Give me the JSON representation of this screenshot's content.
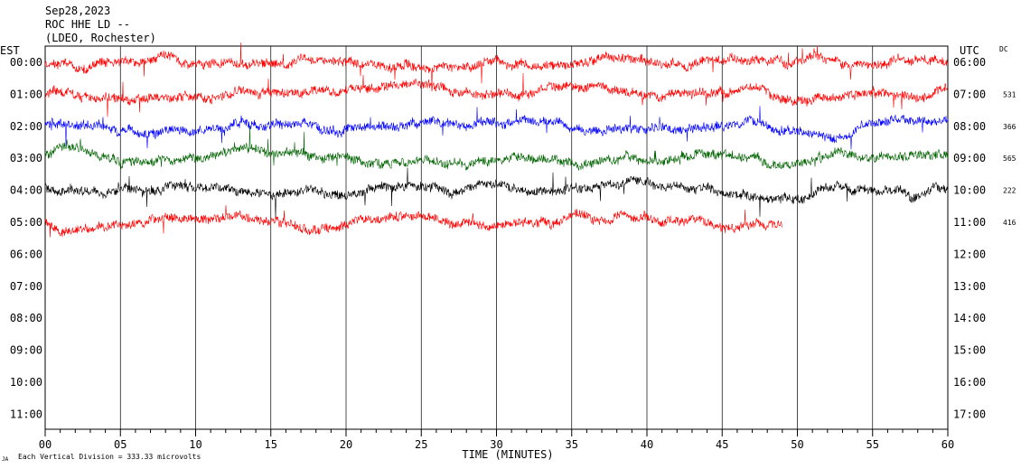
{
  "header": {
    "date": "Sep28,2023",
    "station": "ROC HHE LD --",
    "network": "(LDEO, Rochester)"
  },
  "labels": {
    "left_tz": "EST",
    "right_tz": "UTC",
    "dc": "DC",
    "footer_note": "Each Vertical Division =  333.33 microvolts",
    "footer_mark": "JA"
  },
  "colors": {
    "red": "#ff0000",
    "blue": "#0000ff",
    "green": "#006400",
    "black": "#000000",
    "grid": "#000000"
  },
  "chart_data": {
    "type": "line",
    "xlabel": "TIME (MINUTES)",
    "xlim": [
      0,
      60
    ],
    "x_ticks": [
      "00",
      "05",
      "10",
      "15",
      "20",
      "25",
      "30",
      "35",
      "40",
      "45",
      "50",
      "55",
      "60"
    ],
    "x_tick_values": [
      0,
      5,
      10,
      15,
      20,
      25,
      30,
      35,
      40,
      45,
      50,
      55,
      60
    ],
    "minor_tick_step": 1,
    "left_hour_labels": [
      "00:00",
      "01:00",
      "02:00",
      "03:00",
      "04:00",
      "05:00",
      "06:00",
      "07:00",
      "08:00",
      "09:00",
      "10:00",
      "11:00"
    ],
    "right_hour_labels": [
      "06:00",
      "07:00",
      "08:00",
      "09:00",
      "10:00",
      "11:00",
      "12:00",
      "13:00",
      "14:00",
      "15:00",
      "16:00",
      "17:00"
    ],
    "grid": "vertical lines every 5 minutes",
    "traces": [
      {
        "hour_index": 0,
        "color": "red",
        "end_minute": 60,
        "dc": ""
      },
      {
        "hour_index": 1,
        "color": "red",
        "end_minute": 60,
        "dc": "531"
      },
      {
        "hour_index": 2,
        "color": "blue",
        "end_minute": 60,
        "dc": "366"
      },
      {
        "hour_index": 3,
        "color": "green",
        "end_minute": 60,
        "dc": "565"
      },
      {
        "hour_index": 4,
        "color": "black",
        "end_minute": 60,
        "dc": "222"
      },
      {
        "hour_index": 5,
        "color": "red",
        "end_minute": 49,
        "dc": "416"
      }
    ]
  }
}
